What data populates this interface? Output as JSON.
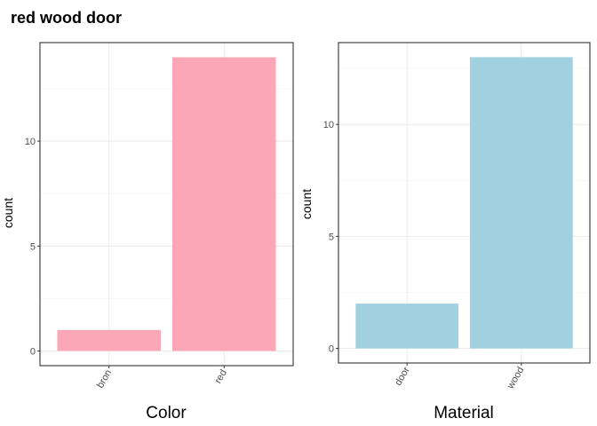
{
  "title": "red wood door",
  "chart_data": [
    {
      "type": "bar",
      "categories": [
        "bron",
        "red"
      ],
      "values": [
        1,
        14
      ],
      "xlabel": "Color",
      "ylabel": "count",
      "yticks": [
        0,
        5,
        10
      ],
      "ylim": [
        -0.7,
        14.7
      ],
      "grid": true,
      "bar_color": "#fca7b8"
    },
    {
      "type": "bar",
      "categories": [
        "door",
        "wood"
      ],
      "values": [
        2,
        13
      ],
      "xlabel": "Material",
      "ylabel": "count",
      "yticks": [
        0,
        5,
        10
      ],
      "ylim": [
        -0.65,
        13.65
      ],
      "grid": true,
      "bar_color": "#a1d1e1"
    }
  ]
}
